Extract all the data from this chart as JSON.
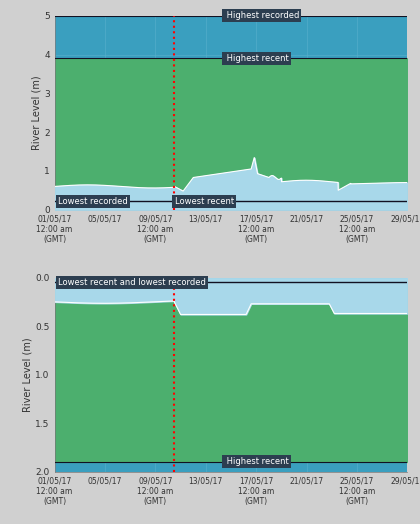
{
  "bg_color": "#3a9fbf",
  "green_color": "#4caf6e",
  "lightblue_color": "#a8d8ea",
  "grid_color": "#5ab0cc",
  "label_bg": "#2c3e50",
  "label_text": "#ffffff",
  "upper": {
    "ylim": [
      0,
      5
    ],
    "yticks": [
      0,
      1,
      2,
      3,
      4,
      5
    ],
    "highest_recorded": 5.0,
    "highest_recent": 3.9,
    "lowest_recorded": 0.22,
    "ylabel": "River Level (m)"
  },
  "lower": {
    "ylim": [
      0,
      2.0
    ],
    "yticks": [
      0.0,
      0.5,
      1.0,
      1.5,
      2.0
    ],
    "highest_recent": 1.9,
    "lowest_recorded": 0.05,
    "ylabel": "River Level (m)"
  },
  "x_start": 0,
  "x_end": 28,
  "red_line_x": 9.5,
  "xtick_positions": [
    0,
    4,
    8,
    12,
    16,
    20,
    24,
    28
  ],
  "xtick_labels": [
    "01/05/17\n12:00 am\n(GMT)",
    "05/05/17",
    "09/05/17\n12:00 am\n(GMT)",
    "13/05/17",
    "17/05/17\n12:00 am\n(GMT)",
    "21/05/17",
    "25/05/17\n12:00 am\n(GMT)",
    "29/05/17"
  ]
}
